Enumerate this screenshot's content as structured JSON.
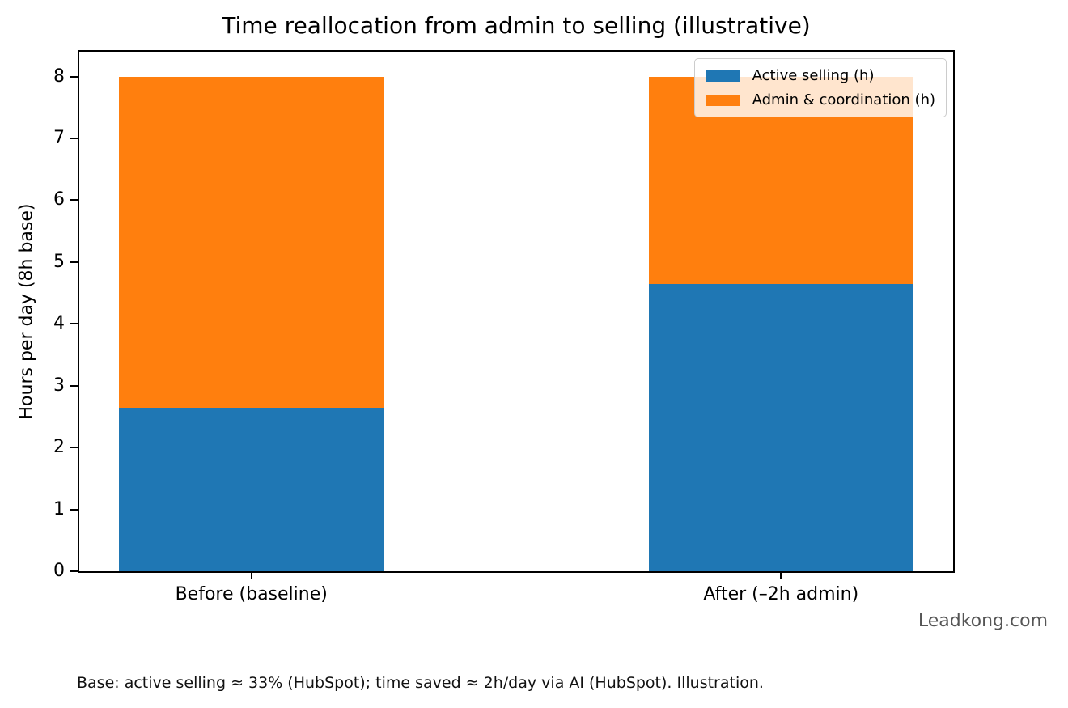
{
  "chart_data": {
    "type": "bar",
    "stacked": true,
    "title": "Time reallocation from admin to selling (illustrative)",
    "ylabel": "Hours per day (8h base)",
    "xlabel": "",
    "categories": [
      "Before (baseline)",
      "After (–2h admin)"
    ],
    "series": [
      {
        "name": "Active selling (h)",
        "color": "#1f77b4",
        "values": [
          2.64,
          4.64
        ]
      },
      {
        "name": "Admin & coordination (h)",
        "color": "#ff7f0e",
        "values": [
          5.36,
          3.36
        ]
      }
    ],
    "totals": [
      8,
      8
    ],
    "ylim": [
      0,
      8.4
    ],
    "yticks": [
      0,
      1,
      2,
      3,
      4,
      5,
      6,
      7,
      8
    ],
    "xlim": [
      -0.325,
      1.325
    ],
    "bar_width": 0.5,
    "legend_position": "upper right",
    "grid": false,
    "background_color": "#ffffff",
    "spine_color": "#000000"
  },
  "annotations": {
    "watermark": "Leadkong.com",
    "caption": "Base: active selling ≈ 33% (HubSpot); time saved ≈ 2h/day via AI (HubSpot). Illustration."
  }
}
